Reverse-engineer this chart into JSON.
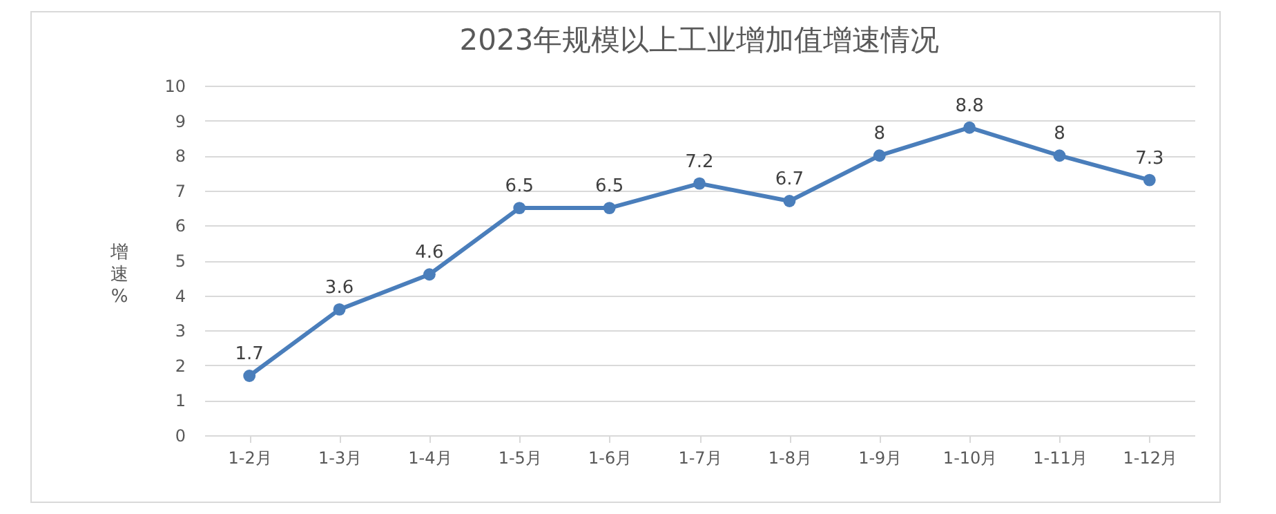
{
  "chart_data": {
    "type": "line",
    "title": "2023年规模以上工业增加值增速情况",
    "ylabel": "增速%",
    "categories": [
      "1-2月",
      "1-3月",
      "1-4月",
      "1-5月",
      "1-6月",
      "1-7月",
      "1-8月",
      "1-9月",
      "1-10月",
      "1-11月",
      "1-12月"
    ],
    "series": [
      {
        "color": "#4a7ebb",
        "values": [
          1.7,
          3.6,
          4.6,
          6.5,
          6.5,
          7.2,
          6.7,
          8,
          8.8,
          8,
          7.3
        ]
      }
    ],
    "ylim": [
      0,
      10
    ],
    "yticks": [
      0,
      1,
      2,
      3,
      4,
      5,
      6,
      7,
      8,
      9,
      10
    ],
    "grid": "y",
    "marker": "circle",
    "data_labels": true,
    "legend": false
  }
}
